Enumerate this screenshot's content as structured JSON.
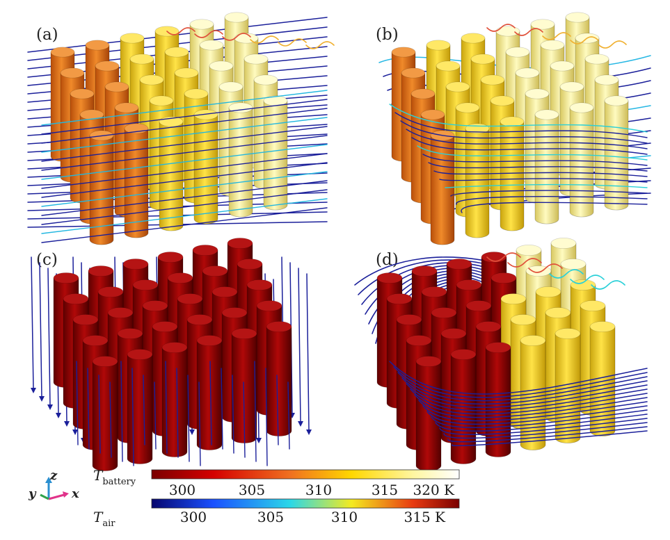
{
  "panels": [
    {
      "label": "(a)"
    },
    {
      "label": "(b)"
    },
    {
      "label": "(c)"
    },
    {
      "label": "(d)"
    }
  ],
  "triad": {
    "y": "y",
    "z": "z",
    "x": "x"
  },
  "colorbars": {
    "battery": {
      "symbol": "T",
      "subscript": "battery",
      "ticks": [
        "300",
        "305",
        "310",
        "315",
        "320 K"
      ]
    },
    "air": {
      "symbol": "T",
      "subscript": "air",
      "ticks": [
        "300",
        "305",
        "310",
        "315 K"
      ]
    }
  },
  "colors": {
    "battery_ramp": [
      "#7a0000",
      "#d40000",
      "#f07020",
      "#ffd700",
      "#fff6a0",
      "#ffffff"
    ],
    "air_ramp": [
      "#06066e",
      "#1a50ff",
      "#2ad7e8",
      "#f4ea20",
      "#e83a10",
      "#7a0000"
    ],
    "cell_orange": "#e8781e",
    "cell_yellow": "#f3dc3a",
    "cell_pale": "#f7ef90",
    "cell_red": "#9c0505",
    "streamline": "#1a1f9a"
  }
}
